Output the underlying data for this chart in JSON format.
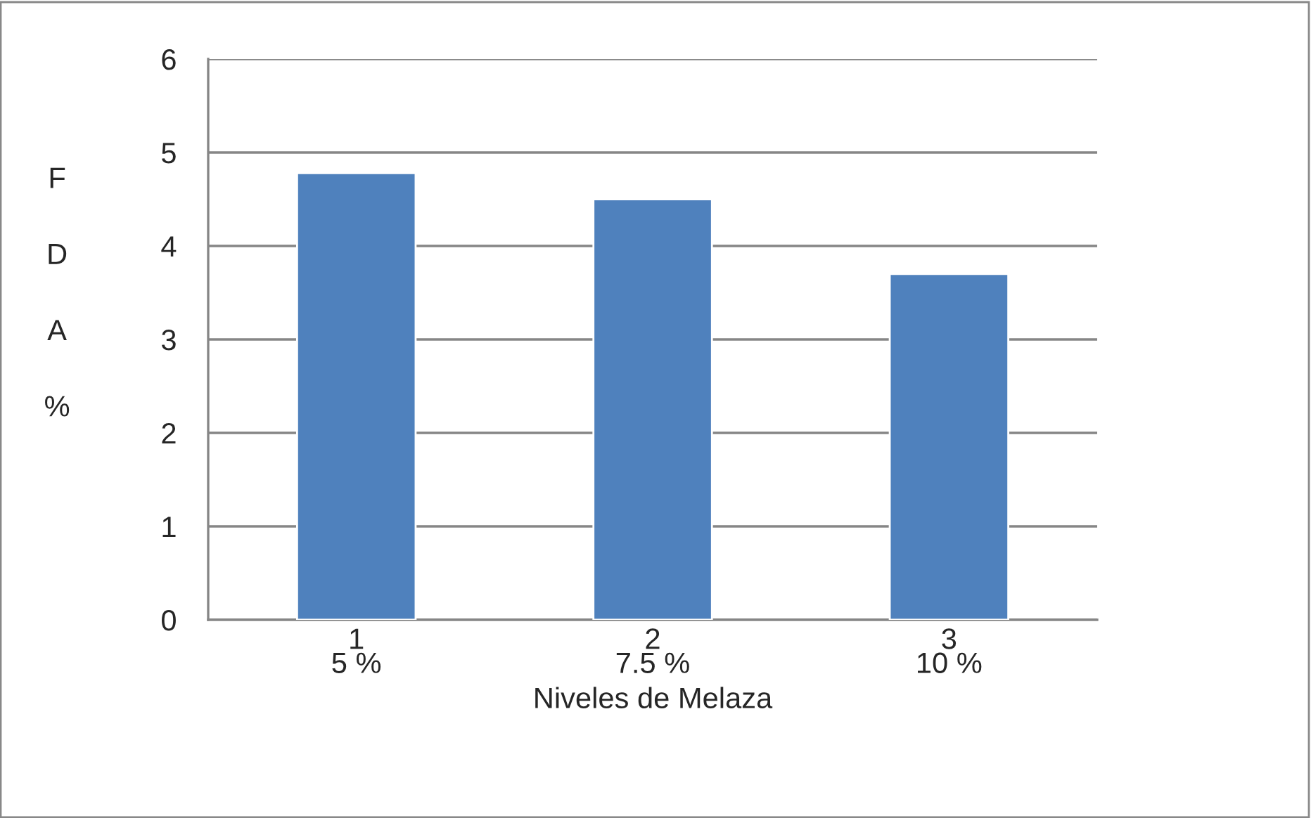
{
  "chart_data": {
    "type": "bar",
    "xlabel": "Niveles de Melaza",
    "ylabel": "F\nD\nA\n%",
    "categories": [
      "1\n5 %",
      "2\n7.5 %",
      "3\n10 %"
    ],
    "values": [
      4.78,
      4.5,
      3.7
    ],
    "color": "#4f81bd",
    "ylim": [
      0,
      6
    ],
    "yticks": [
      0,
      1,
      2,
      3,
      4,
      5,
      6
    ],
    "grid": "y",
    "legend": false
  }
}
